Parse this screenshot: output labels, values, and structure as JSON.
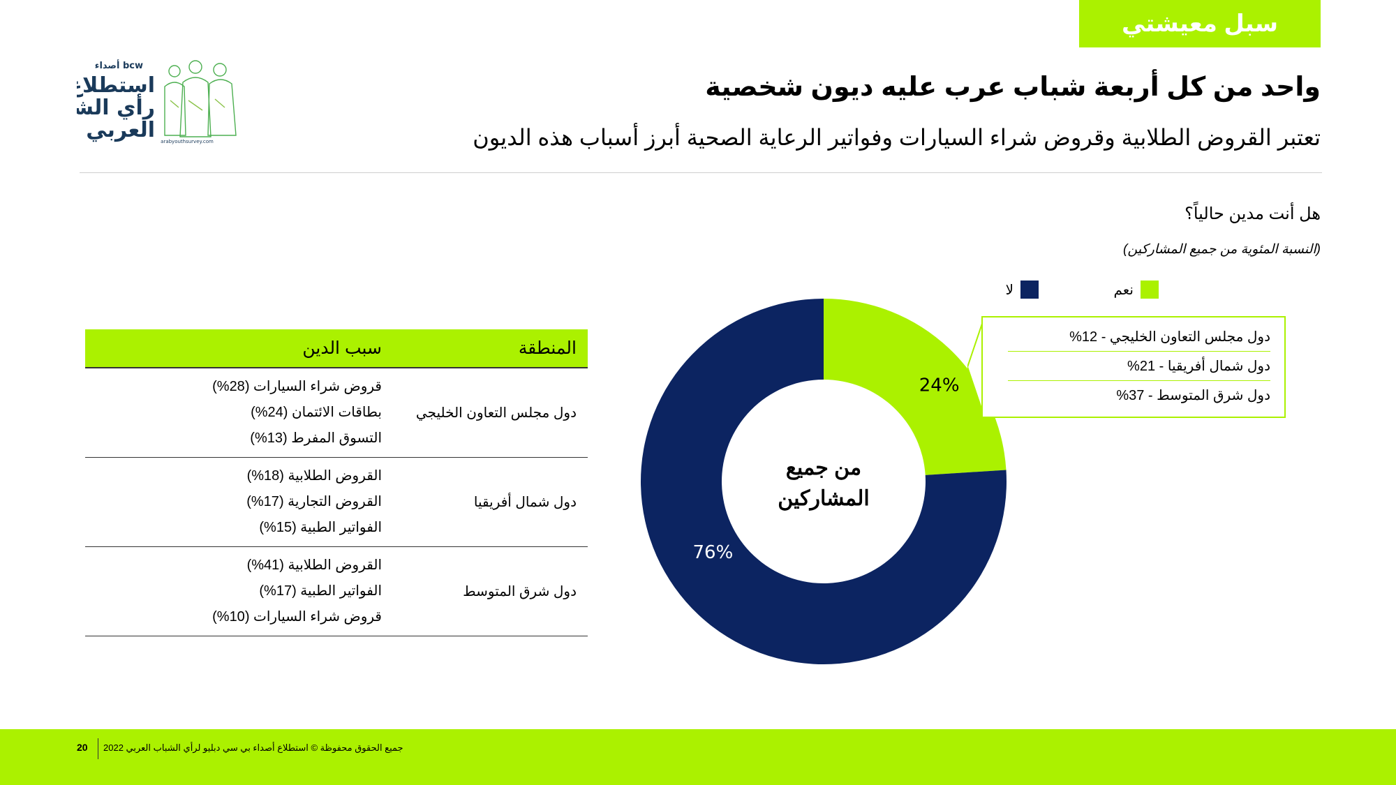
{
  "section_tab": "سبل معيشتي",
  "logo": {
    "brand": "أصداء bcw",
    "line1": "استطلاع",
    "line2": "رأي الشباب",
    "line3": "العربي",
    "url": "arabyouthsurvey.com"
  },
  "title": "واحد من كل أربعة شباب عرب عليه ديون شخصية",
  "subtitle": "تعتبر القروض الطلابية وقروض شراء السيارات وفواتير الرعاية الصحية أبرز أسباب هذه الديون",
  "question": "هل أنت مدين حالياً؟",
  "note": "(النسبة المئوية من جميع المشاركين)",
  "legend": [
    {
      "label": "نعم",
      "color": "#abf100"
    },
    {
      "label": "لا",
      "color": "#0c2461"
    }
  ],
  "chart_data": {
    "type": "pie",
    "donut": true,
    "center_label": [
      "من جميع",
      "المشاركين"
    ],
    "categories": [
      "نعم",
      "لا"
    ],
    "values": [
      24,
      76
    ],
    "value_labels": [
      "24%",
      "76%"
    ],
    "colors": [
      "#abf100",
      "#0c2461"
    ]
  },
  "callout": [
    {
      "label": "دول مجلس التعاون الخليجي - 12%"
    },
    {
      "label": "دول شمال أفريقيا  - 21%"
    },
    {
      "label": "دول شرق المتوسط  - 37%"
    }
  ],
  "table": {
    "header_region": "المنطقة",
    "header_reason": "سبب الدين",
    "rows": [
      {
        "region": "دول مجلس التعاون الخليجي",
        "reasons": [
          "قروض شراء السيارات (28%)",
          "بطاقات الائتمان (24%)",
          "التسوق المفرط (13%)"
        ]
      },
      {
        "region": "دول شمال أفريقيا",
        "reasons": [
          "القروض الطلابية (18%)",
          "القروض التجارية (17%)",
          "الفواتير الطبية (15%)"
        ]
      },
      {
        "region": "دول شرق المتوسط",
        "reasons": [
          "القروض الطلابية (41%)",
          "الفواتير الطبية (17%)",
          "قروض شراء السيارات (10%)"
        ]
      }
    ]
  },
  "footer": {
    "page_number": "20",
    "copyright": "جميع الحقوق محفوظة © استطلاع أصداء بي سي دبليو لرأي الشباب العربي 2022"
  }
}
